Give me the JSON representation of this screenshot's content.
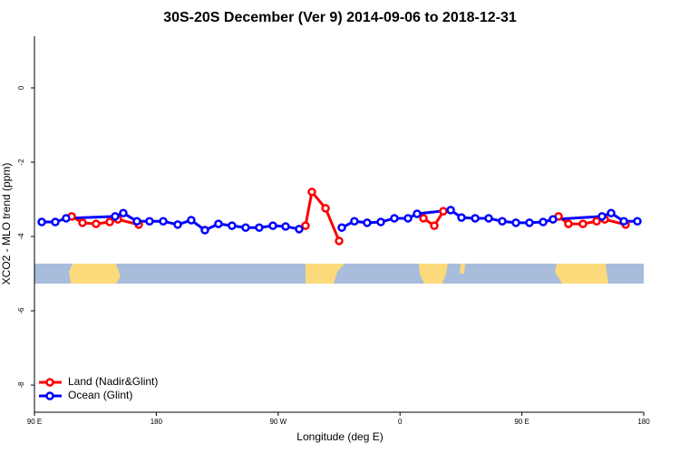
{
  "chart_data": {
    "type": "line",
    "title": "30S-20S December (Ver 9)   2014-09-06 to 2018-12-31",
    "xlabel": "Longitude (deg E)",
    "ylabel": "XCO2 - MLO trend (ppm)",
    "xlim": [
      90,
      540
    ],
    "ylim": [
      -8.73,
      1.39
    ],
    "xticks": [
      {
        "value": 90,
        "label": "90 E"
      },
      {
        "value": 180,
        "label": "180"
      },
      {
        "value": 270,
        "label": "90 W"
      },
      {
        "value": 360,
        "label": "0"
      },
      {
        "value": 450,
        "label": "90 E"
      },
      {
        "value": 540,
        "label": "180"
      }
    ],
    "yticks": [
      0,
      -2,
      -4,
      -6,
      -8
    ],
    "legend": "bottom-left",
    "series": [
      {
        "name": "Land (Nadir&Glint)",
        "color": "#ff0000",
        "x": [
          117.5,
          125.5,
          135.5,
          145.6,
          151.6,
          167.0,
          null,
          290.2,
          294.9,
          305.0,
          315.0,
          null,
          377.3,
          385.3,
          392.0,
          null,
          477.1,
          484.4,
          495.1,
          505.2,
          511.2,
          526.6
        ],
        "values": [
          -3.46,
          -3.63,
          -3.66,
          -3.61,
          -3.54,
          -3.68,
          null,
          -3.71,
          -2.8,
          -3.24,
          -4.12,
          null,
          -3.51,
          -3.71,
          -3.32,
          null,
          -3.46,
          -3.66,
          -3.66,
          -3.59,
          -3.54,
          -3.68
        ]
      },
      {
        "name": "Ocean (Glint)",
        "color": "#0000ff",
        "x": [
          95.4,
          105.4,
          113.4,
          149.6,
          155.6,
          165.7,
          175.0,
          185.1,
          195.8,
          205.8,
          215.9,
          225.9,
          235.9,
          246.0,
          256.0,
          266.1,
          275.5,
          285.5,
          null,
          317.0,
          326.3,
          335.7,
          345.8,
          355.8,
          365.9,
          372.6,
          397.4,
          405.4,
          415.5,
          425.5,
          435.5,
          445.6,
          455.6,
          465.7,
          473.0,
          509.2,
          515.9,
          525.3,
          535.3
        ],
        "values": [
          -3.61,
          -3.61,
          -3.51,
          -3.46,
          -3.37,
          -3.59,
          -3.59,
          -3.59,
          -3.68,
          -3.56,
          -3.83,
          -3.66,
          -3.71,
          -3.76,
          -3.76,
          -3.71,
          -3.73,
          -3.8,
          null,
          -3.76,
          -3.59,
          -3.63,
          -3.61,
          -3.51,
          -3.51,
          -3.39,
          -3.29,
          -3.49,
          -3.51,
          -3.51,
          -3.59,
          -3.63,
          -3.63,
          -3.61,
          -3.54,
          -3.46,
          -3.37,
          -3.59,
          -3.59
        ]
      }
    ]
  }
}
